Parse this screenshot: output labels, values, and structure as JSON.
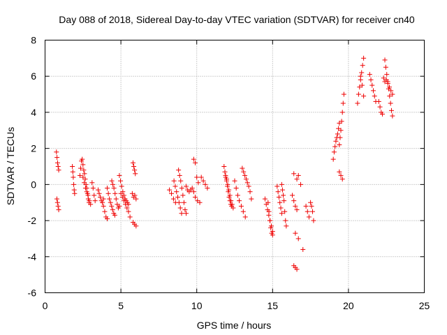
{
  "chart_data": {
    "type": "scatter",
    "title": "Day 088 of 2018, Sidereal Day-to-day VTEC variation (SDTVAR) for receiver cn40",
    "xlabel": "GPS time / hours",
    "ylabel": "SDTVAR / TECUs",
    "xlim": [
      0,
      25
    ],
    "ylim": [
      -6,
      8
    ],
    "xticks": [
      0,
      5,
      10,
      15,
      20,
      25
    ],
    "yticks": [
      -6,
      -4,
      -2,
      0,
      2,
      4,
      6,
      8
    ],
    "xtick_labels": [
      "0",
      "5",
      "10",
      "15",
      "20",
      "25"
    ],
    "ytick_labels": [
      "-6",
      "-4",
      "-2",
      "0",
      "2",
      "4",
      "6",
      "8"
    ],
    "grid": true,
    "marker": "plus",
    "color": "#ee0000",
    "series": [
      {
        "name": "SDTVAR",
        "segments": [
          {
            "t0": 0.75,
            "t1": 0.9,
            "v": [
              1.8,
              1.5,
              1.2,
              1.0,
              0.8
            ]
          },
          {
            "t0": 0.78,
            "t1": 0.9,
            "v": [
              -0.8,
              -1.0,
              -1.2,
              -1.4
            ]
          },
          {
            "t0": 1.8,
            "t1": 1.95,
            "v": [
              1.0,
              0.7,
              0.4,
              0.0,
              -0.3,
              -0.5
            ]
          },
          {
            "t0": 2.3,
            "t1": 2.9,
            "v": [
              0.5,
              0.9,
              1.3,
              1.4,
              1.1,
              0.8,
              0.6,
              0.3,
              0.0,
              -0.2,
              -0.5,
              -0.8,
              -1.0
            ]
          },
          {
            "t0": 2.5,
            "t1": 3.0,
            "v": [
              0.4,
              0.1,
              -0.2,
              -0.4,
              -0.6,
              -0.9,
              -1.1
            ]
          },
          {
            "t0": 3.1,
            "t1": 3.3,
            "v": [
              0.1,
              -0.2,
              -0.6,
              -0.9
            ]
          },
          {
            "t0": 3.5,
            "t1": 3.85,
            "v": [
              -0.3,
              -0.5,
              -0.7,
              -0.9,
              -1.0,
              -0.8
            ]
          },
          {
            "t0": 3.85,
            "t1": 4.1,
            "v": [
              -1.2,
              -1.5,
              -1.8,
              -1.9
            ]
          },
          {
            "t0": 4.1,
            "t1": 4.6,
            "v": [
              -0.2,
              -0.5,
              -0.8,
              -1.0,
              -1.2,
              -1.4,
              -1.6,
              -1.7
            ]
          },
          {
            "t0": 4.4,
            "t1": 4.9,
            "v": [
              0.2,
              0.0,
              -0.2,
              -0.5,
              -0.8,
              -1.1,
              -1.3,
              -1.2
            ]
          },
          {
            "t0": 4.9,
            "t1": 5.5,
            "v": [
              0.5,
              0.2,
              -0.1,
              -0.4,
              -0.6,
              -0.8,
              -0.9,
              -1.0,
              -1.1
            ]
          },
          {
            "t0": 5.0,
            "t1": 5.6,
            "v": [
              -0.5,
              -0.7,
              -0.9,
              -1.1,
              -1.3,
              -1.5,
              -1.8
            ]
          },
          {
            "t0": 5.8,
            "t1": 5.95,
            "v": [
              1.2,
              1.0,
              0.8,
              0.6
            ]
          },
          {
            "t0": 5.75,
            "t1": 6.0,
            "v": [
              -0.5,
              -0.7,
              -0.6,
              -0.8
            ]
          },
          {
            "t0": 5.8,
            "t1": 6.0,
            "v": [
              -2.1,
              -2.2,
              -2.3
            ]
          },
          {
            "t0": 8.2,
            "t1": 8.6,
            "v": [
              -0.3,
              -0.5,
              -0.8,
              -1.0
            ]
          },
          {
            "t0": 8.5,
            "t1": 9.0,
            "v": [
              0.2,
              -0.1,
              -0.4,
              -0.7,
              -1.0,
              -1.3,
              -1.6
            ]
          },
          {
            "t0": 8.8,
            "t1": 9.3,
            "v": [
              0.8,
              0.5,
              0.2,
              -0.2,
              -0.6,
              -1.0,
              -1.4,
              -1.6
            ]
          },
          {
            "t0": 9.3,
            "t1": 9.8,
            "v": [
              -0.1,
              -0.3,
              -0.4,
              -0.3,
              -0.2,
              -0.4
            ]
          },
          {
            "t0": 9.8,
            "t1": 10.1,
            "v": [
              1.4,
              1.2,
              0.4,
              0.1
            ]
          },
          {
            "t0": 9.9,
            "t1": 10.2,
            "v": [
              -0.7,
              -0.9,
              -1.0
            ]
          },
          {
            "t0": 10.3,
            "t1": 10.7,
            "v": [
              0.4,
              0.2,
              0.0,
              -0.2
            ]
          },
          {
            "t0": 11.8,
            "t1": 12.3,
            "v": [
              1.0,
              0.7,
              0.4,
              0.2,
              -0.1,
              -0.4,
              -0.7,
              -0.9,
              -1.1,
              -1.2
            ]
          },
          {
            "t0": 11.9,
            "t1": 12.4,
            "v": [
              0.5,
              0.3,
              0.0,
              -0.3,
              -0.6,
              -0.9,
              -1.1,
              -1.3
            ]
          },
          {
            "t0": 12.5,
            "t1": 12.7,
            "v": [
              0.2,
              -0.2,
              -0.6
            ]
          },
          {
            "t0": 12.8,
            "t1": 13.2,
            "v": [
              -0.9,
              -1.2,
              -1.5,
              -1.8
            ]
          },
          {
            "t0": 13.0,
            "t1": 13.6,
            "v": [
              0.9,
              0.7,
              0.5,
              0.3,
              0.1,
              -0.1,
              -0.4,
              -0.8
            ]
          },
          {
            "t0": 14.5,
            "t1": 15.0,
            "v": [
              -0.8,
              -1.1,
              -1.4,
              -1.7,
              -2.0,
              -2.3,
              -2.6
            ]
          },
          {
            "t0": 14.7,
            "t1": 15.0,
            "v": [
              -1.0,
              -1.5,
              -2.0,
              -2.4,
              -2.7,
              -2.8
            ]
          },
          {
            "t0": 15.3,
            "t1": 15.6,
            "v": [
              -0.1,
              -0.4,
              -0.7,
              -1.0,
              -1.3,
              -1.6
            ]
          },
          {
            "t0": 15.6,
            "t1": 15.9,
            "v": [
              0.0,
              -0.3,
              -0.6,
              -0.9,
              -1.5,
              -2.0,
              -2.3
            ]
          },
          {
            "t0": 16.3,
            "t1": 16.6,
            "v": [
              -0.6,
              -0.9,
              -1.2,
              -1.4
            ]
          },
          {
            "t0": 16.4,
            "t1": 16.6,
            "v": [
              0.6,
              0.3
            ]
          },
          {
            "t0": 16.5,
            "t1": 16.7,
            "v": [
              -2.7,
              -3.0
            ]
          },
          {
            "t0": 16.4,
            "t1": 16.6,
            "v": [
              -4.5,
              -4.6,
              -4.7
            ]
          },
          {
            "t0": 16.7,
            "t1": 17.0,
            "v": [
              0.5,
              0.0,
              -3.6
            ]
          },
          {
            "t0": 17.2,
            "t1": 17.4,
            "v": [
              -1.2,
              -1.5,
              -1.8
            ]
          },
          {
            "t0": 17.5,
            "t1": 17.7,
            "v": [
              -1.0,
              -1.2,
              -1.5,
              -2.0
            ]
          },
          {
            "t0": 19.0,
            "t1": 19.4,
            "v": [
              1.4,
              1.8,
              2.1,
              2.4,
              2.6,
              2.8,
              3.1,
              3.4
            ]
          },
          {
            "t0": 19.4,
            "t1": 19.7,
            "v": [
              2.2,
              2.6,
              3.0,
              3.5,
              4.0,
              4.5,
              5.0
            ]
          },
          {
            "t0": 19.4,
            "t1": 19.6,
            "v": [
              0.7,
              0.5,
              0.3
            ]
          },
          {
            "t0": 20.6,
            "t1": 21.0,
            "v": [
              4.5,
              5.0,
              5.4,
              5.8,
              6.2,
              6.6,
              7.0
            ]
          },
          {
            "t0": 20.8,
            "t1": 21.0,
            "v": [
              6.0,
              5.5,
              4.9
            ]
          },
          {
            "t0": 21.4,
            "t1": 21.8,
            "v": [
              6.1,
              5.8,
              5.5,
              5.2,
              4.9,
              4.6
            ]
          },
          {
            "t0": 22.0,
            "t1": 22.4,
            "v": [
              4.6,
              4.3,
              4.0,
              3.9,
              5.9,
              5.7
            ]
          },
          {
            "t0": 22.4,
            "t1": 22.9,
            "v": [
              6.9,
              6.5,
              6.1,
              5.7,
              5.3,
              4.9,
              4.5,
              4.1,
              3.8
            ]
          },
          {
            "t0": 22.5,
            "t1": 22.9,
            "v": [
              5.8,
              5.6,
              5.4,
              5.2,
              5.0
            ]
          }
        ]
      }
    ]
  }
}
